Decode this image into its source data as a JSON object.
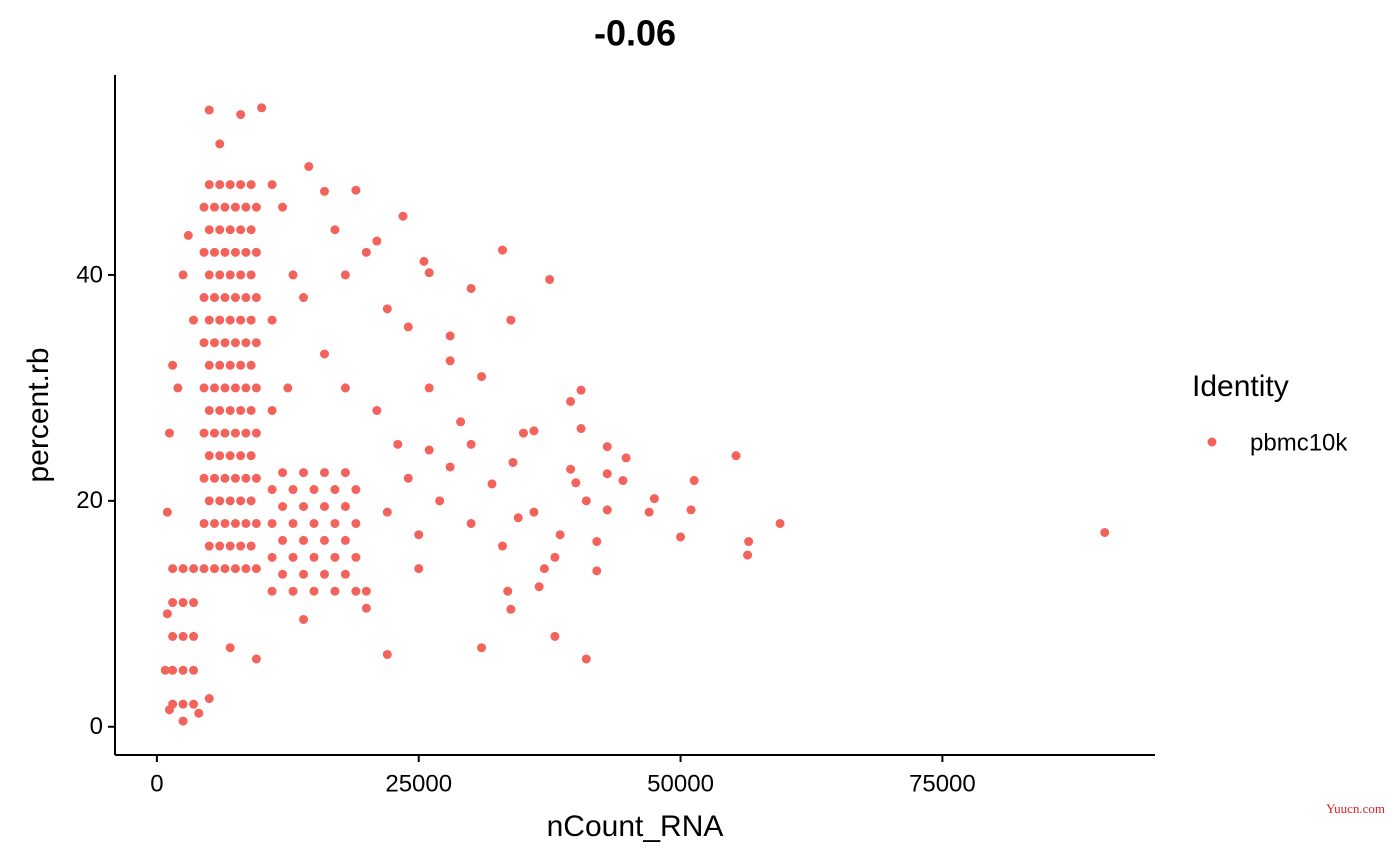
{
  "chart_data": {
    "type": "scatter",
    "title": "-0.06",
    "xlabel": "nCount_RNA",
    "ylabel": "percent.rb",
    "legend_title": "Identity",
    "legend_position": "right",
    "grid": false,
    "watermark": "Yuucn.com",
    "xlim": [
      -4000,
      95300
    ],
    "ylim": [
      -2.5,
      57.7
    ],
    "xticks": [
      0,
      25000,
      50000,
      75000
    ],
    "yticks": [
      0,
      20,
      40
    ],
    "x": [
      4500,
      4500,
      4500,
      4500,
      4500,
      4500,
      4500,
      4500,
      4500,
      5500,
      5500,
      5500,
      5500,
      5500,
      5500,
      5500,
      5500,
      5500,
      6500,
      6500,
      6500,
      6500,
      6500,
      6500,
      6500,
      6500,
      6500,
      7500,
      7500,
      7500,
      7500,
      7500,
      7500,
      7500,
      7500,
      7500,
      8500,
      8500,
      8500,
      8500,
      8500,
      8500,
      8500,
      8500,
      8500,
      9500,
      9500,
      9500,
      9500,
      9500,
      9500,
      9500,
      9500,
      9500,
      5000,
      5000,
      5000,
      5000,
      5000,
      5000,
      5000,
      5000,
      5000,
      6000,
      6000,
      6000,
      6000,
      6000,
      6000,
      6000,
      6000,
      6000,
      7000,
      7000,
      7000,
      7000,
      7000,
      7000,
      7000,
      7000,
      7000,
      8000,
      8000,
      8000,
      8000,
      8000,
      8000,
      8000,
      8000,
      8000,
      9000,
      9000,
      9000,
      9000,
      9000,
      9000,
      9000,
      9000,
      9000,
      11000,
      11000,
      11000,
      11000,
      13000,
      13000,
      13000,
      13000,
      15000,
      15000,
      15000,
      15000,
      17000,
      17000,
      17000,
      17000,
      19000,
      19000,
      19000,
      19000,
      12000,
      12000,
      12000,
      12000,
      14000,
      14000,
      14000,
      14000,
      16000,
      16000,
      16000,
      16000,
      18000,
      18000,
      18000,
      18000,
      1500,
      1500,
      1500,
      1500,
      1500,
      2500,
      2500,
      2500,
      2500,
      2500,
      3500,
      3500,
      3500,
      3500,
      3500,
      90500,
      59500,
      56500,
      56400,
      55300,
      51300,
      51000,
      50000,
      47500,
      47000,
      44800,
      44500,
      43000,
      43000,
      43000,
      42000,
      42000,
      41000,
      41000,
      40500,
      40500,
      39500,
      39500,
      40000,
      37500,
      33000,
      33800,
      38000,
      37000,
      31000,
      33500,
      33800,
      36500,
      22000,
      25500,
      26000,
      23500,
      19000,
      14500,
      16000,
      10000,
      8000,
      5000,
      6000,
      28000,
      28000,
      31000,
      30000,
      35000,
      36000,
      34000,
      29000,
      26000,
      24000,
      22000,
      20000,
      21000,
      18000,
      17000,
      12000,
      11000,
      3000,
      2500,
      1500,
      1200,
      1000,
      2000,
      3500,
      1000,
      800,
      1200,
      2500,
      4000,
      5000,
      9500,
      7000,
      14000,
      20000,
      20000,
      25000,
      25000,
      27000,
      30000,
      32000,
      33000,
      34500,
      36000,
      38500,
      38000,
      23000,
      21000,
      18000,
      16000,
      14000,
      13000,
      12500,
      11000,
      11000,
      22000,
      24000,
      26000,
      28000,
      30000
    ],
    "series": [
      {
        "name": "pbmc10k",
        "color": "#F3625B",
        "values": [
          14,
          18,
          22,
          26,
          30,
          34,
          38,
          42,
          46,
          14,
          18,
          22,
          26,
          30,
          34,
          38,
          42,
          46,
          14,
          18,
          22,
          26,
          30,
          34,
          38,
          42,
          46,
          14,
          18,
          22,
          26,
          30,
          34,
          38,
          42,
          46,
          14,
          18,
          22,
          26,
          30,
          34,
          38,
          42,
          46,
          14,
          18,
          22,
          26,
          30,
          34,
          38,
          42,
          46,
          16,
          20,
          24,
          28,
          32,
          36,
          40,
          44,
          48,
          16,
          20,
          24,
          28,
          32,
          36,
          40,
          44,
          48,
          16,
          20,
          24,
          28,
          32,
          36,
          40,
          44,
          48,
          16,
          20,
          24,
          28,
          32,
          36,
          40,
          44,
          48,
          16,
          20,
          24,
          28,
          32,
          36,
          40,
          44,
          48,
          12,
          15,
          18,
          21,
          12,
          15,
          18,
          21,
          12,
          15,
          18,
          21,
          12,
          15,
          18,
          21,
          12,
          15,
          18,
          21,
          13.5,
          16.5,
          19.5,
          22.5,
          13.5,
          16.5,
          19.5,
          22.5,
          13.5,
          16.5,
          19.5,
          22.5,
          13.5,
          16.5,
          19.5,
          22.5,
          2,
          5,
          8,
          11,
          14,
          2,
          5,
          8,
          11,
          14,
          2,
          5,
          8,
          11,
          14,
          17.2,
          18,
          16.4,
          15.2,
          24,
          21.8,
          19.2,
          16.8,
          20.2,
          19,
          23.8,
          21.8,
          24.8,
          22.4,
          19.2,
          16.4,
          13.8,
          6,
          20,
          29.8,
          26.4,
          28.8,
          22.8,
          21.6,
          39.6,
          42.2,
          36,
          8,
          14,
          7,
          12,
          10.4,
          12.4,
          6.4,
          41.2,
          40.2,
          45.2,
          47.5,
          49.6,
          47.4,
          54.8,
          54.2,
          54.6,
          51.6,
          34.6,
          32.4,
          31,
          38.8,
          26,
          26.2,
          23.4,
          27,
          30,
          35.4,
          37,
          42,
          43,
          40,
          44,
          46,
          48,
          43.5,
          40,
          32,
          26,
          19,
          30,
          36,
          10,
          5,
          1.5,
          0.5,
          1.2,
          2.5,
          6,
          7,
          9.5,
          10.5,
          12,
          14,
          17,
          20,
          18,
          21.5,
          16,
          18.5,
          19,
          17,
          15,
          25,
          28,
          30,
          33,
          38,
          40,
          30,
          36,
          28,
          19,
          22,
          24.5,
          23,
          25
        ]
      }
    ]
  }
}
